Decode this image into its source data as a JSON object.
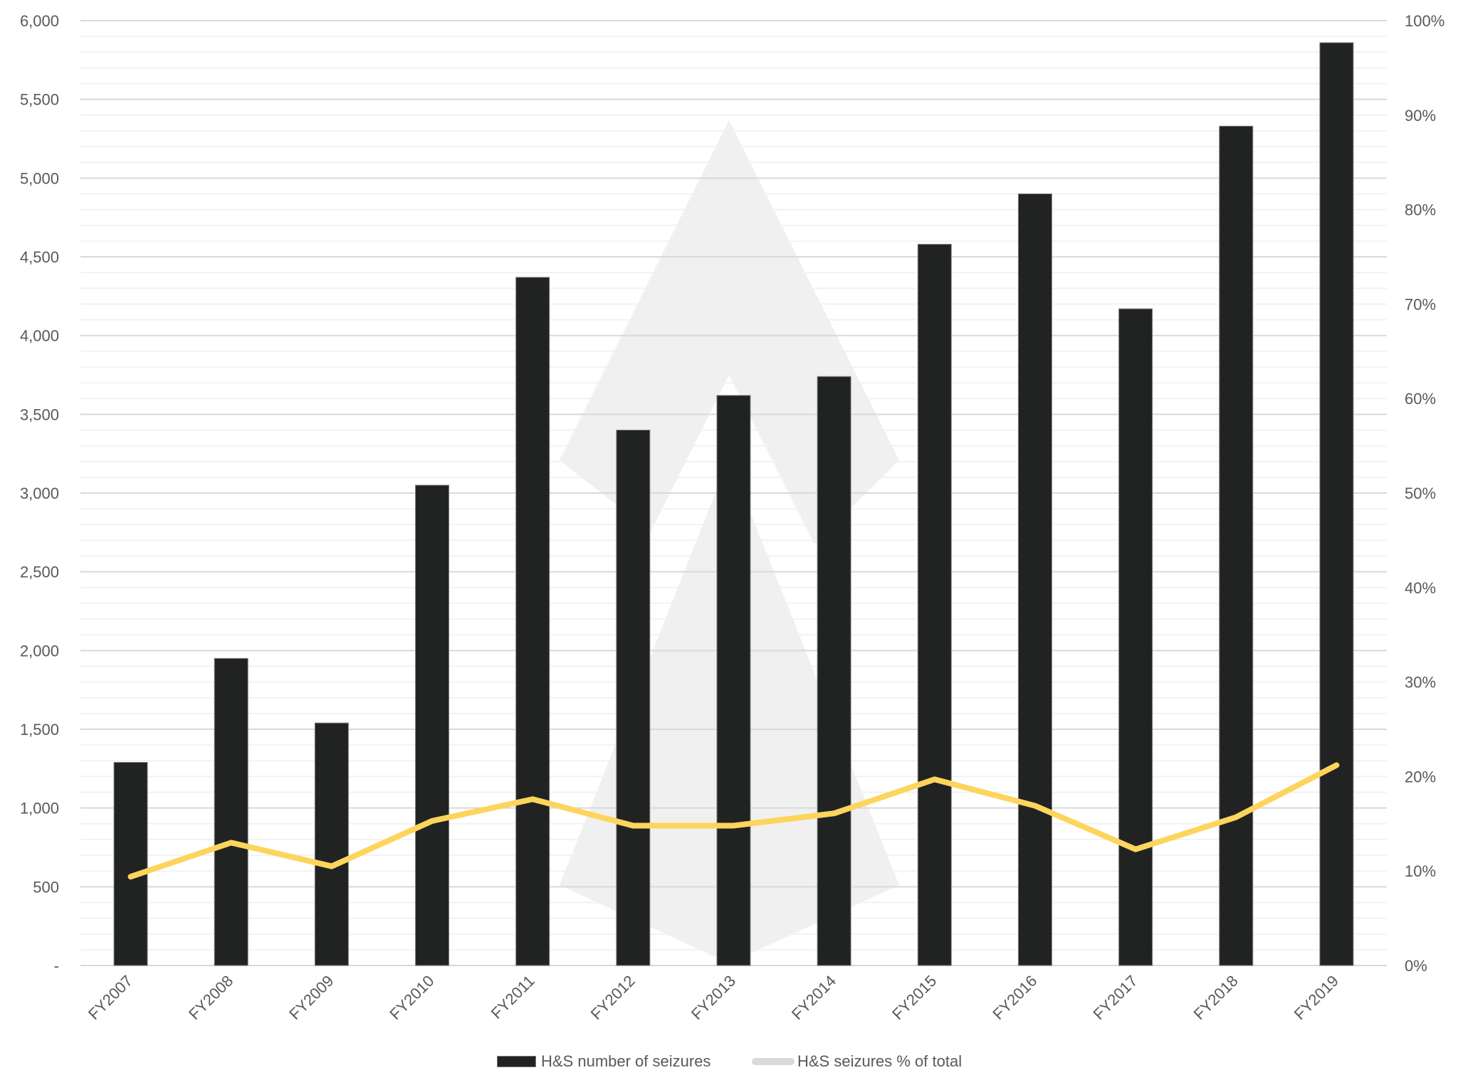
{
  "chart_data": {
    "type": "bar+line",
    "title": "",
    "xlabel": "",
    "ylabel": "",
    "y2label": "",
    "categories": [
      "FY2007",
      "FY2008",
      "FY2009",
      "FY2010",
      "FY2011",
      "FY2012",
      "FY2013",
      "FY2014",
      "FY2015",
      "FY2016",
      "FY2017",
      "FY2018",
      "FY2019"
    ],
    "series": [
      {
        "name": "H&S number of seizures",
        "type": "bar",
        "axis": "left",
        "color": "#212322",
        "values": [
          1290,
          1950,
          1540,
          3050,
          4370,
          3400,
          3620,
          3740,
          4580,
          4900,
          4170,
          5330,
          5860
        ]
      },
      {
        "name": "H&S seizures % of total",
        "type": "line",
        "axis": "right",
        "color": "#fdd55c",
        "legend_color": "#d9d9d9",
        "values": [
          9.4,
          13.0,
          10.5,
          15.3,
          17.6,
          14.8,
          14.8,
          16.1,
          19.7,
          16.9,
          12.3,
          15.7,
          21.2
        ]
      }
    ],
    "ylim": [
      0,
      6000
    ],
    "y2lim": [
      0,
      100
    ],
    "yticks": [
      "-",
      "500",
      "1,000",
      "1,500",
      "2,000",
      "2,500",
      "3,000",
      "3,500",
      "4,000",
      "4,500",
      "5,000",
      "5,500",
      "6,000"
    ],
    "y2ticks": [
      "0%",
      "10%",
      "20%",
      "30%",
      "40%",
      "50%",
      "60%",
      "70%",
      "80%",
      "90%",
      "100%"
    ],
    "grid": true,
    "legend_position": "bottom"
  },
  "legend": {
    "items": [
      {
        "label": "H&S number of seizures"
      },
      {
        "label": "H&S seizures % of total"
      }
    ]
  },
  "colors": {
    "bar": "#212322",
    "line": "#fdd55c",
    "grid_major": "#d9d9d9",
    "grid_minor": "#f2f2f2",
    "watermark": "#f0f0f0",
    "text": "#595959"
  }
}
